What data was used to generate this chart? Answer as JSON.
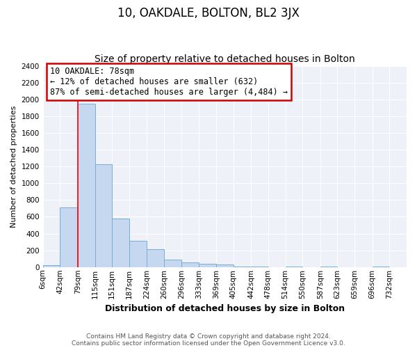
{
  "title": "10, OAKDALE, BOLTON, BL2 3JX",
  "subtitle": "Size of property relative to detached houses in Bolton",
  "xlabel": "Distribution of detached houses by size in Bolton",
  "ylabel": "Number of detached properties",
  "bin_labels": [
    "6sqm",
    "42sqm",
    "79sqm",
    "115sqm",
    "151sqm",
    "187sqm",
    "224sqm",
    "260sqm",
    "296sqm",
    "333sqm",
    "369sqm",
    "405sqm",
    "442sqm",
    "478sqm",
    "514sqm",
    "550sqm",
    "587sqm",
    "623sqm",
    "659sqm",
    "696sqm",
    "732sqm"
  ],
  "bin_edges": [
    6,
    42,
    79,
    115,
    151,
    187,
    224,
    260,
    296,
    333,
    369,
    405,
    442,
    478,
    514,
    550,
    587,
    623,
    659,
    696,
    732
  ],
  "bar_heights": [
    20,
    710,
    1950,
    1230,
    580,
    310,
    210,
    90,
    55,
    40,
    35,
    10,
    5,
    0,
    10,
    0,
    5,
    0,
    0,
    5
  ],
  "bar_color": "#c5d8f0",
  "bar_edge_color": "#7aadd4",
  "red_line_x": 79,
  "annotation_title": "10 OAKDALE: 78sqm",
  "annotation_line1": "← 12% of detached houses are smaller (632)",
  "annotation_line2": "87% of semi-detached houses are larger (4,484) →",
  "annotation_box_color": "#ffffff",
  "annotation_box_edge": "#cc0000",
  "ylim": [
    0,
    2400
  ],
  "yticks": [
    0,
    200,
    400,
    600,
    800,
    1000,
    1200,
    1400,
    1600,
    1800,
    2000,
    2200,
    2400
  ],
  "footer1": "Contains HM Land Registry data © Crown copyright and database right 2024.",
  "footer2": "Contains public sector information licensed under the Open Government Licence v3.0.",
  "bg_color": "#ffffff",
  "plot_bg_color": "#eef2f8",
  "grid_color": "#ffffff",
  "title_fontsize": 12,
  "subtitle_fontsize": 10
}
